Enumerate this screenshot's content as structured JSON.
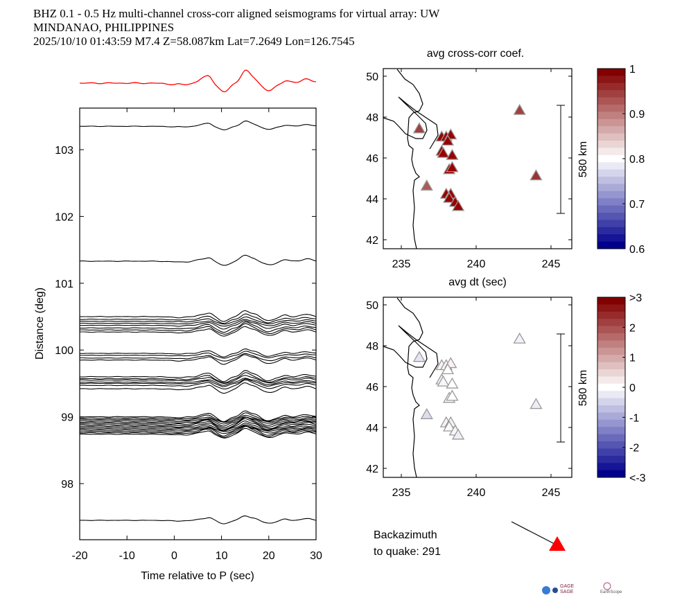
{
  "header": {
    "line1": "BHZ  0.1 - 0.5 Hz  multi-channel cross-corr aligned seismograms for virtual array: UW",
    "line2": "MINDANAO, PHILIPPINES",
    "line3": "2025/10/10  01:43:59  M7.4  Z=58.087km Lat=7.2649 Lon=126.7545"
  },
  "chart_data": [
    {
      "type": "line",
      "xlabel": "Time relative to P (sec)",
      "ylabel": "Distance (deg)",
      "xlim": [
        -20,
        30
      ],
      "ylim": [
        97.4,
        103.6
      ],
      "xticks": [
        "-20",
        "-10",
        "0",
        "10",
        "20",
        "30"
      ],
      "yticks": [
        "98",
        "99",
        "100",
        "101",
        "102",
        "103"
      ],
      "trace_distances": [
        103.35,
        101.33,
        100.5,
        100.46,
        100.43,
        100.4,
        100.37,
        100.33,
        100.3,
        100.27,
        99.95,
        99.92,
        99.88,
        99.85,
        99.6,
        99.57,
        99.55,
        99.52,
        99.5,
        99.47,
        99.42,
        99.0,
        98.98,
        98.96,
        98.94,
        98.92,
        98.9,
        98.88,
        98.86,
        98.84,
        98.82,
        98.8,
        98.78,
        98.76,
        98.74,
        97.45
      ],
      "stack_color": "#ff0000"
    },
    {
      "type": "scatter",
      "title": "avg cross-corr coef.",
      "xlabel": "avg dt (sec)",
      "xlim": [
        233.8,
        246.2
      ],
      "ylim": [
        41.6,
        50.3
      ],
      "xticks": [
        "235",
        "240",
        "245"
      ],
      "yticks": [
        "42",
        "44",
        "46",
        "48",
        "50"
      ],
      "scale_bar": "580 km",
      "colorbar": {
        "min": 0.6,
        "max": 1,
        "ticks": [
          "0.6",
          "0.7",
          "0.8",
          "0.9",
          "1"
        ]
      },
      "points": [
        [
          236.2,
          47.4,
          0.95
        ],
        [
          236.7,
          44.6,
          0.93
        ],
        [
          237.7,
          47.0,
          1
        ],
        [
          238.0,
          47.0,
          1
        ],
        [
          238.3,
          47.1,
          1
        ],
        [
          238.1,
          46.8,
          1
        ],
        [
          237.7,
          46.3,
          1
        ],
        [
          237.8,
          46.2,
          1
        ],
        [
          238.4,
          46.1,
          1
        ],
        [
          238.2,
          45.4,
          1
        ],
        [
          238.4,
          45.5,
          1
        ],
        [
          238.0,
          44.2,
          1
        ],
        [
          238.3,
          44.2,
          1
        ],
        [
          238.2,
          44.0,
          1
        ],
        [
          238.6,
          43.8,
          1
        ],
        [
          238.8,
          43.6,
          1
        ],
        [
          242.9,
          48.3,
          0.95
        ],
        [
          244.0,
          45.1,
          0.96
        ]
      ]
    },
    {
      "type": "scatter",
      "xlim": [
        233.8,
        246.2
      ],
      "ylim": [
        41.6,
        50.3
      ],
      "xticks": [
        "235",
        "240",
        "245"
      ],
      "yticks": [
        "42",
        "44",
        "46",
        "48",
        "50"
      ],
      "scale_bar": "580 km",
      "colorbar": {
        "min": -3,
        "max": 3,
        "ticks": [
          "<-3",
          "-2",
          "-1",
          "0",
          "1",
          "2",
          ">3"
        ]
      },
      "points": [
        [
          236.2,
          47.4,
          -0.6
        ],
        [
          236.7,
          44.6,
          -0.8
        ],
        [
          237.7,
          47.0,
          0.3
        ],
        [
          238.0,
          47.0,
          0.2
        ],
        [
          238.3,
          47.1,
          0.3
        ],
        [
          238.1,
          46.8,
          0
        ],
        [
          237.7,
          46.3,
          -0.3
        ],
        [
          237.8,
          46.2,
          -0.2
        ],
        [
          238.4,
          46.1,
          0
        ],
        [
          238.2,
          45.4,
          0.1
        ],
        [
          238.4,
          45.5,
          0
        ],
        [
          238.0,
          44.2,
          0.3
        ],
        [
          238.3,
          44.2,
          0.3
        ],
        [
          238.2,
          44.0,
          -0.1
        ],
        [
          238.6,
          43.8,
          -0.2
        ],
        [
          238.8,
          43.6,
          -0.4
        ],
        [
          242.9,
          48.3,
          -0.3
        ],
        [
          244.0,
          45.1,
          -0.4
        ]
      ]
    }
  ],
  "backazimuth": {
    "line1": "Backazimuth",
    "line2": "to quake:  291",
    "value": 291
  },
  "logos": [
    "GAGE",
    "SAGE",
    "EarthScope"
  ]
}
